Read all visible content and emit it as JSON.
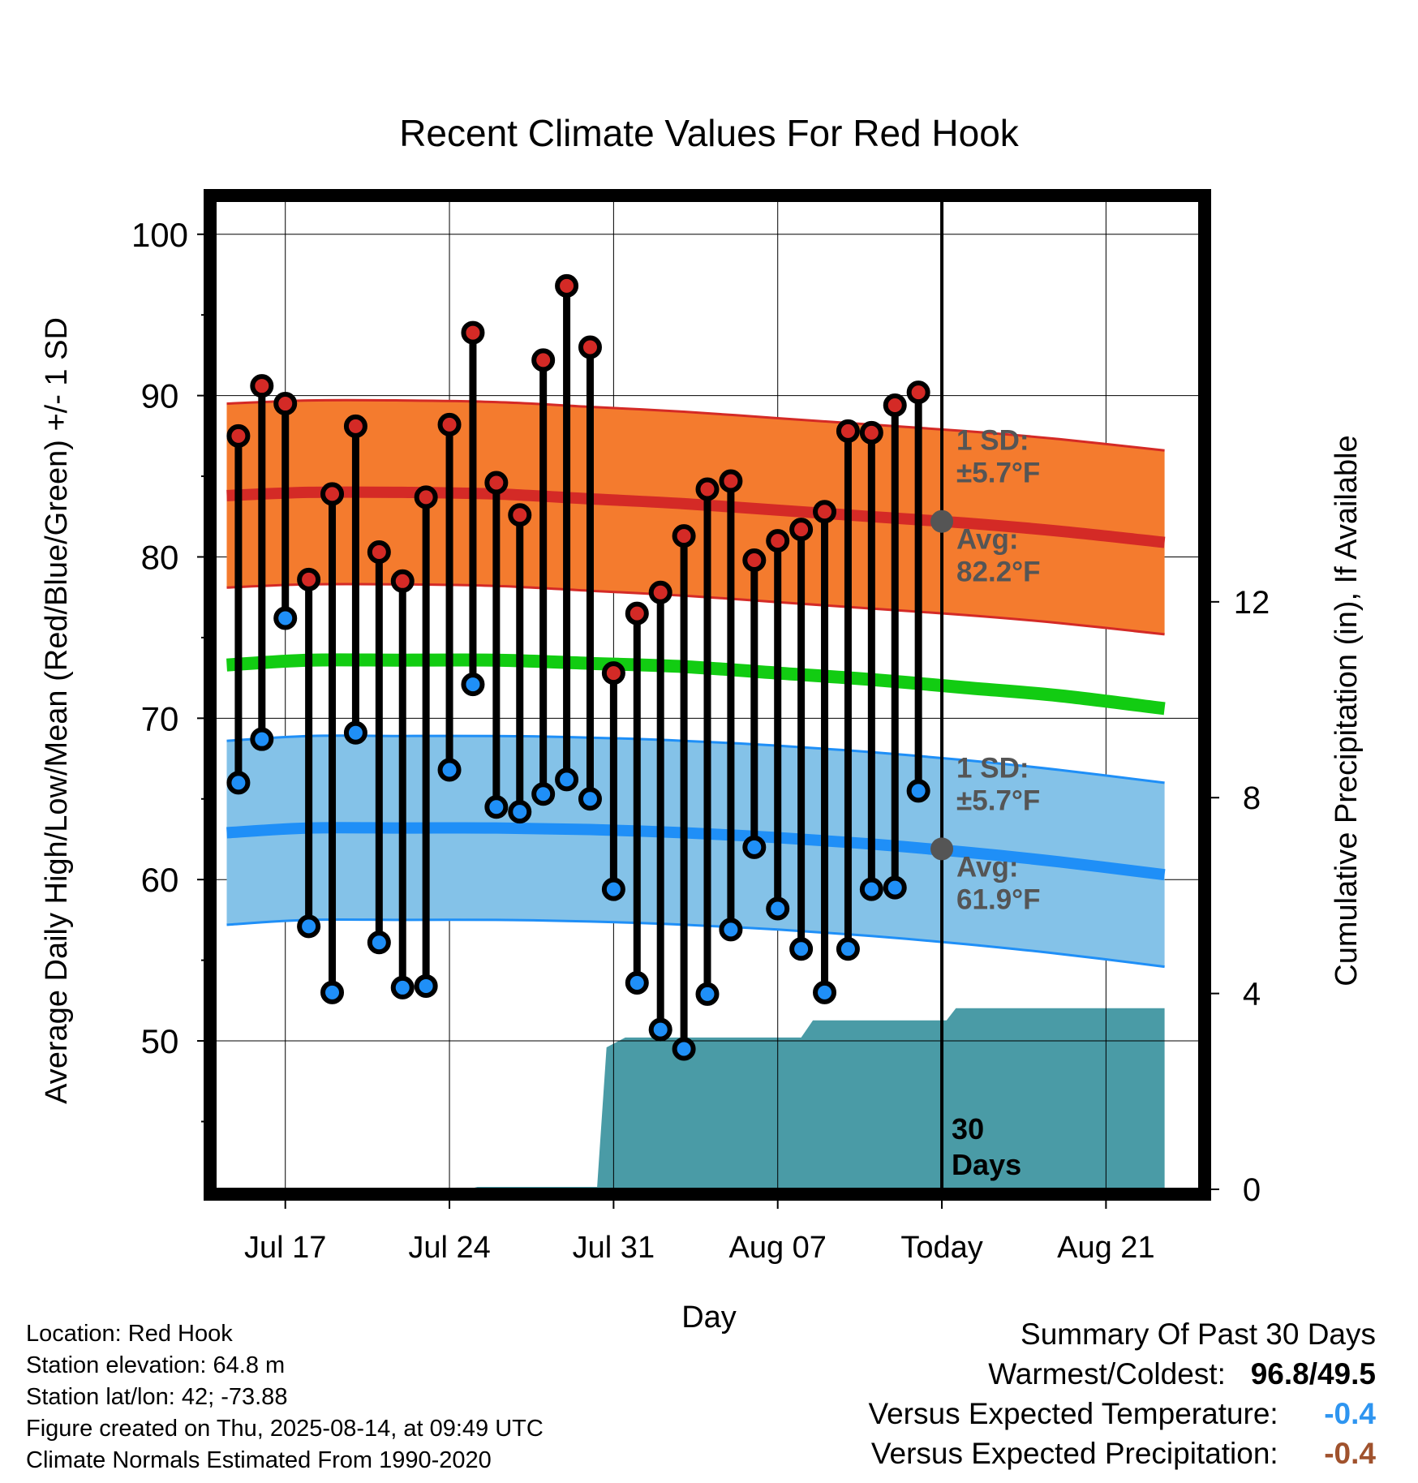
{
  "chart_data": {
    "type": "line",
    "title": "Recent Climate Values For Red Hook",
    "xlabel": "Day",
    "ylabel": "Average Daily High/Low/Mean (Red/Blue/Green) +/- 1 SD",
    "y2label": "Cumulative Precipitation (in), If Available",
    "ylim": [
      40.8,
      102.1
    ],
    "y2lim": [
      0,
      20.2
    ],
    "yticks": [
      50,
      60,
      70,
      80,
      90,
      100
    ],
    "y2ticks": [
      0,
      4,
      8,
      12
    ],
    "xlim": [
      0,
      42
    ],
    "xtick_labels": [
      {
        "day": 3,
        "label": "Jul 17"
      },
      {
        "day": 10,
        "label": "Jul 24"
      },
      {
        "day": 17,
        "label": "Jul 31"
      },
      {
        "day": 24,
        "label": "Aug 07"
      },
      {
        "day": 31,
        "label": "Today"
      },
      {
        "day": 38,
        "label": "Aug 21"
      }
    ],
    "today_day": 31,
    "days": [
      "Jul 15",
      "Jul 16",
      "Jul 17",
      "Jul 18",
      "Jul 19",
      "Jul 20",
      "Jul 21",
      "Jul 22",
      "Jul 23",
      "Jul 24",
      "Jul 25",
      "Jul 26",
      "Jul 27",
      "Jul 28",
      "Jul 29",
      "Jul 30",
      "Jul 31",
      "Aug 01",
      "Aug 02",
      "Aug 03",
      "Aug 04",
      "Aug 05",
      "Aug 06",
      "Aug 07",
      "Aug 08",
      "Aug 09",
      "Aug 10",
      "Aug 11",
      "Aug 12",
      "Aug 13"
    ],
    "daily_high": [
      87.5,
      90.6,
      89.5,
      78.6,
      83.9,
      88.1,
      80.3,
      78.5,
      83.7,
      88.2,
      93.9,
      84.6,
      82.6,
      92.2,
      96.8,
      93.0,
      72.8,
      76.5,
      77.8,
      81.3,
      84.2,
      84.7,
      79.8,
      81.0,
      81.7,
      82.8,
      87.8,
      87.7,
      89.4,
      90.2
    ],
    "daily_low": [
      66.0,
      68.7,
      76.2,
      57.1,
      53.0,
      69.1,
      56.1,
      53.3,
      53.4,
      66.8,
      72.1,
      64.5,
      64.2,
      65.3,
      66.2,
      65.0,
      59.4,
      53.6,
      50.7,
      49.5,
      52.9,
      56.9,
      62.0,
      58.2,
      55.7,
      53.0,
      55.7,
      59.4,
      59.5,
      65.5
    ],
    "normal_days": [
      0.5,
      4,
      8,
      12,
      16,
      20,
      24,
      28,
      32,
      36,
      40.5
    ],
    "normal_high": [
      83.8,
      84.0,
      84.0,
      83.9,
      83.6,
      83.3,
      82.9,
      82.5,
      82.1,
      81.6,
      80.9
    ],
    "normal_low": [
      62.9,
      63.2,
      63.2,
      63.2,
      63.1,
      62.9,
      62.6,
      62.2,
      61.7,
      61.1,
      60.3
    ],
    "normal_mean": [
      73.3,
      73.6,
      73.6,
      73.6,
      73.4,
      73.2,
      72.8,
      72.4,
      71.9,
      71.4,
      70.6
    ],
    "sd_high": 5.7,
    "sd_low": 5.7,
    "precip_days": [
      0.5,
      10.8,
      11.2,
      14.0,
      16.3,
      16.7,
      17.5,
      25.0,
      25.5,
      31.2,
      31.6,
      40.5
    ],
    "cumulative_precip": [
      0,
      0,
      0.05,
      0.05,
      0.05,
      2.9,
      3.1,
      3.1,
      3.45,
      3.45,
      3.7,
      3.7
    ],
    "annotations": {
      "high_sd_line1": "1 SD:",
      "high_sd_line2": "±5.7°F",
      "high_avg_line1": "Avg:",
      "high_avg_line2": "82.2°F",
      "low_sd_line1": "1 SD:",
      "low_sd_line2": "±5.7°F",
      "low_avg_line1": "Avg:",
      "low_avg_line2": "61.9°F",
      "today_avg_high": 82.2,
      "today_avg_low": 61.9,
      "period_line1": "30",
      "period_line2": "Days"
    },
    "colors": {
      "high_band": "#f47b2e",
      "high_line": "#d42a26",
      "low_band": "#84c2e8",
      "low_line": "#1f8ff7",
      "mean_line": "#12cc12",
      "precip": "#4a9ba6",
      "high_dot": "#d42a26",
      "low_dot": "#1f8ff7",
      "annotation": "#555555"
    },
    "grid": true
  },
  "info": {
    "location": "Location: Red Hook",
    "elevation": "Station elevation: 64.8 m",
    "latlon": "Station lat/lon: 42; -73.88",
    "created": "Figure created on Thu, 2025-08-14, at 09:49 UTC",
    "normals": "Climate Normals Estimated From 1990-2020"
  },
  "summary": {
    "heading": "Summary Of Past 30 Days",
    "warm_cold_label": "Warmest/Coldest:",
    "warm_value": "96.8",
    "slash": "/",
    "cold_value": "49.5",
    "temp_label": "Versus Expected Temperature:",
    "temp_value": "-0.4",
    "temp_color": "#2e95f0",
    "precip_label": "Versus Expected Precipitation:",
    "precip_value": "-0.4",
    "precip_color": "#a0522d"
  }
}
